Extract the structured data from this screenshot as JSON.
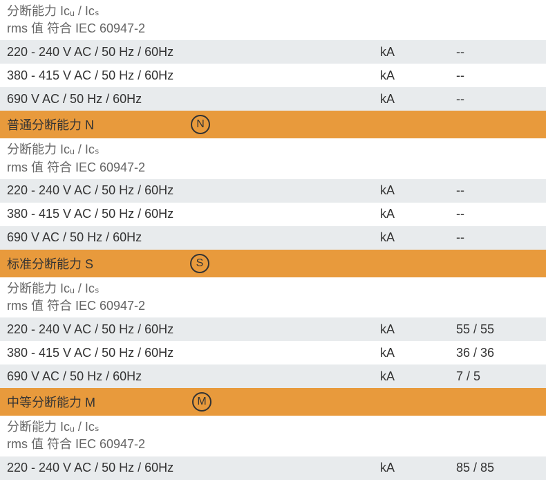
{
  "colors": {
    "row_gray": "#e8ebed",
    "row_white": "#ffffff",
    "row_orange": "#e89a3c",
    "text": "#333333",
    "subtext": "#666666"
  },
  "section0": {
    "subheader_line1": "分断能力 Iᴄᵤ / Iᴄₛ",
    "subheader_line2": "rms 值 符合 IEC 60947-2",
    "rows": [
      {
        "label": "220 - 240 V AC / 50 Hz / 60Hz",
        "unit": "kA",
        "value": "--"
      },
      {
        "label": "380 - 415 V AC / 50 Hz / 60Hz",
        "unit": "kA",
        "value": "--"
      },
      {
        "label": "690 V AC / 50 Hz / 60Hz",
        "unit": "kA",
        "value": "--"
      }
    ]
  },
  "section1": {
    "title": "普通分断能力 N",
    "icon": "N",
    "subheader_line1": "分断能力 Iᴄᵤ / Iᴄₛ",
    "subheader_line2": "rms 值 符合 IEC 60947-2",
    "rows": [
      {
        "label": "220 - 240 V AC / 50 Hz / 60Hz",
        "unit": "kA",
        "value": "--"
      },
      {
        "label": "380 - 415 V AC / 50 Hz / 60Hz",
        "unit": "kA",
        "value": "--"
      },
      {
        "label": "690 V AC / 50 Hz / 60Hz",
        "unit": "kA",
        "value": "--"
      }
    ]
  },
  "section2": {
    "title": "标准分断能力 S",
    "icon": "S",
    "subheader_line1": "分断能力 Iᴄᵤ / Iᴄₛ",
    "subheader_line2": "rms 值 符合 IEC 60947-2",
    "rows": [
      {
        "label": "220 - 240 V AC / 50 Hz / 60Hz",
        "unit": "kA",
        "value": "55 / 55"
      },
      {
        "label": "380 - 415 V AC / 50 Hz / 60Hz",
        "unit": "kA",
        "value": "36 / 36"
      },
      {
        "label": "690 V AC / 50 Hz / 60Hz",
        "unit": "kA",
        "value": "7 / 5"
      }
    ]
  },
  "section3": {
    "title": "中等分断能力 M",
    "icon": "M",
    "subheader_line1": "分断能力 Iᴄᵤ / Iᴄₛ",
    "subheader_line2": "rms 值 符合 IEC 60947-2",
    "rows": [
      {
        "label": "220 - 240 V AC / 50 Hz / 60Hz",
        "unit": "kA",
        "value": "85 / 85"
      }
    ]
  }
}
